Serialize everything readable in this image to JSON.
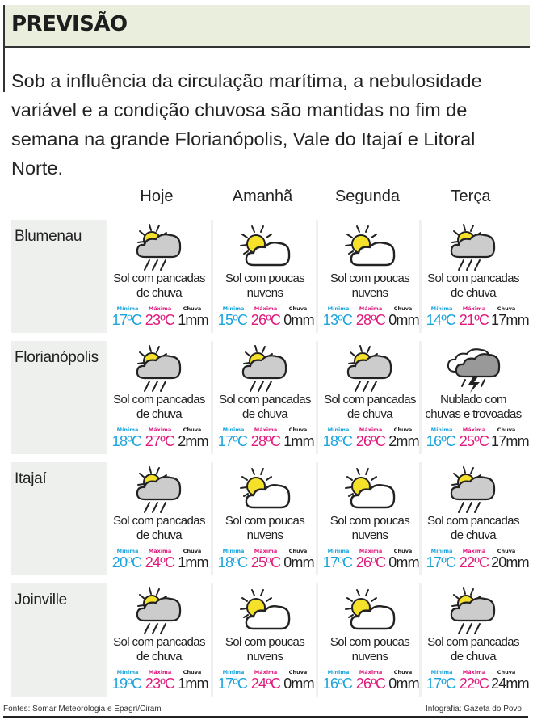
{
  "header": {
    "title": "PREVISÃO"
  },
  "intro": "Sob a influência da circulação marítima, a nebulosidade variável e a condição chuvosa são mantidas no fim de semana na grande Florianópolis, Vale do Itajaí e Litoral Norte.",
  "days": [
    "Hoje",
    "Amanhã",
    "Segunda",
    "Terça"
  ],
  "labels": {
    "min": "Mínima",
    "max": "Máxima",
    "rain": "Chuva"
  },
  "colors": {
    "min": "#1aa3dc",
    "max": "#e0197d",
    "rain": "#222222",
    "sun": "#f5e12a",
    "cloud_gray": "#cccccc",
    "header_bg": "#e9efdc"
  },
  "cities": [
    {
      "name": "Blumenau",
      "forecast": [
        {
          "icon": "sun-cloud-rain-icon",
          "line1": "Sol com pancadas",
          "line2": "de chuva",
          "min": "17ºC",
          "max": "23ºC",
          "rain": "1mm"
        },
        {
          "icon": "sun-cloud-icon",
          "line1": "Sol com poucas",
          "line2": "nuvens",
          "min": "15ºC",
          "max": "26ºC",
          "rain": "0mm"
        },
        {
          "icon": "sun-cloud-icon",
          "line1": "Sol com poucas",
          "line2": "nuvens",
          "min": "13ºC",
          "max": "28ºC",
          "rain": "0mm"
        },
        {
          "icon": "sun-cloud-rain-icon",
          "line1": "Sol com pancadas",
          "line2": "de chuva",
          "min": "14ºC",
          "max": "21ºC",
          "rain": "17mm"
        }
      ]
    },
    {
      "name": "Florianópolis",
      "forecast": [
        {
          "icon": "sun-cloud-rain-icon",
          "line1": "Sol com pancadas",
          "line2": "de chuva",
          "min": "18ºC",
          "max": "27ºC",
          "rain": "2mm"
        },
        {
          "icon": "sun-cloud-rain-icon",
          "line1": "Sol com pancadas",
          "line2": "de chuva",
          "min": "17ºC",
          "max": "28ºC",
          "rain": "1mm"
        },
        {
          "icon": "sun-cloud-rain-icon",
          "line1": "Sol com pancadas",
          "line2": "de chuva",
          "min": "18ºC",
          "max": "26ºC",
          "rain": "2mm"
        },
        {
          "icon": "storm-cloud-icon",
          "line1": "Nublado com",
          "line2": "chuvas e trovoadas",
          "min": "16ºC",
          "max": "25ºC",
          "rain": "17mm"
        }
      ]
    },
    {
      "name": "Itajaí",
      "forecast": [
        {
          "icon": "sun-cloud-rain-icon",
          "line1": "Sol com pancadas",
          "line2": "de chuva",
          "min": "20ºC",
          "max": "24ºC",
          "rain": "1mm"
        },
        {
          "icon": "sun-cloud-icon",
          "line1": "Sol com poucas",
          "line2": "nuvens",
          "min": "18ºC",
          "max": "25ºC",
          "rain": "0mm"
        },
        {
          "icon": "sun-cloud-icon",
          "line1": "Sol com poucas",
          "line2": "nuvens",
          "min": "17ºC",
          "max": "26ºC",
          "rain": "0mm"
        },
        {
          "icon": "sun-cloud-rain-icon",
          "line1": "Sol com pancadas",
          "line2": "de chuva",
          "min": "17ºC",
          "max": "22ºC",
          "rain": "20mm"
        }
      ]
    },
    {
      "name": "Joinville",
      "forecast": [
        {
          "icon": "sun-cloud-rain-icon",
          "line1": "Sol com pancadas",
          "line2": "de chuva",
          "min": "19ºC",
          "max": "23ºC",
          "rain": "1mm"
        },
        {
          "icon": "sun-cloud-icon",
          "line1": "Sol com poucas",
          "line2": "nuvens",
          "min": "17ºC",
          "max": "24ºC",
          "rain": "0mm"
        },
        {
          "icon": "sun-cloud-icon",
          "line1": "Sol com poucas",
          "line2": "nuvens",
          "min": "16ºC",
          "max": "26ºC",
          "rain": "0mm"
        },
        {
          "icon": "sun-cloud-rain-icon",
          "line1": "Sol com pancadas",
          "line2": "de chuva",
          "min": "17ºC",
          "max": "22ºC",
          "rain": "24mm"
        }
      ]
    }
  ],
  "footer": {
    "sources": "Fontes: Somar Meteorologia e Epagri/Ciram",
    "credit": "Infografia: Gazeta do Povo"
  }
}
